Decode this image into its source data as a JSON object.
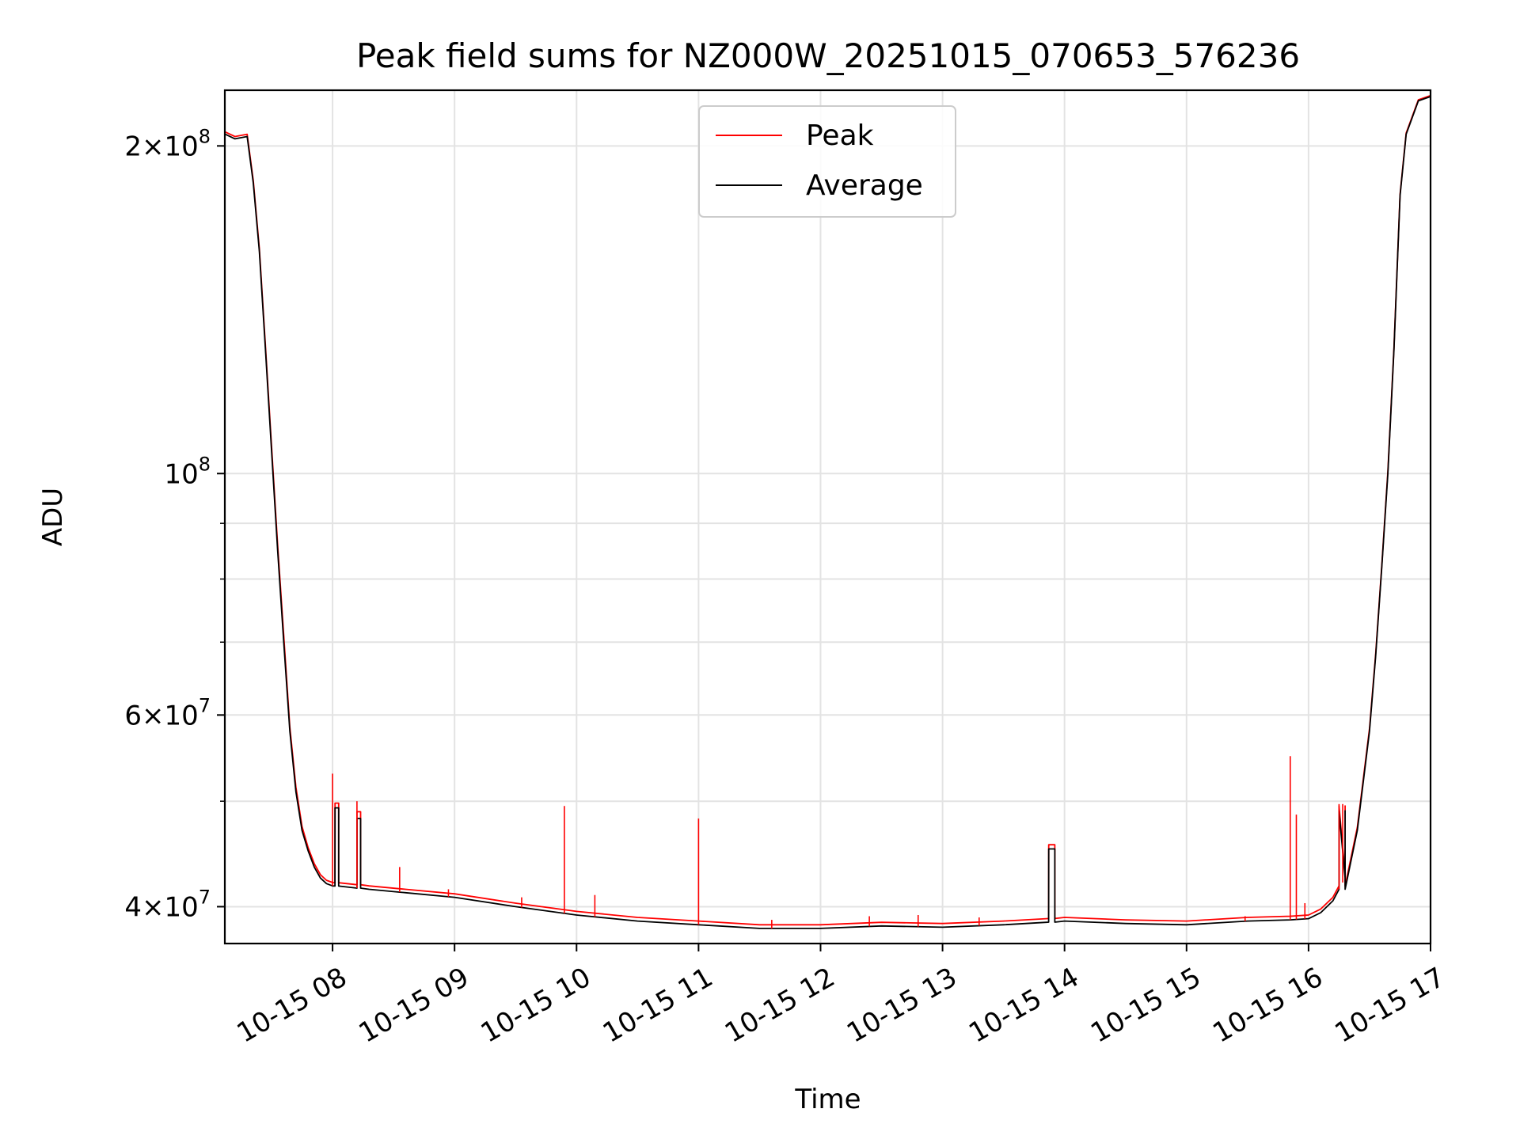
{
  "chart_data": {
    "type": "line",
    "title": "Peak field sums for NZ000W_20251015_070653_576236",
    "xlabel": "Time",
    "ylabel": "ADU",
    "yscale": "log",
    "xlim": [
      7.117,
      17.0
    ],
    "ylim": [
      37000000,
      225000000
    ],
    "grid": true,
    "legend_position": "upper-center",
    "x_ticks": [
      {
        "value": 8,
        "label": "10-15 08"
      },
      {
        "value": 9,
        "label": "10-15 09"
      },
      {
        "value": 10,
        "label": "10-15 10"
      },
      {
        "value": 11,
        "label": "10-15 11"
      },
      {
        "value": 12,
        "label": "10-15 12"
      },
      {
        "value": 13,
        "label": "10-15 13"
      },
      {
        "value": 14,
        "label": "10-15 14"
      },
      {
        "value": 15,
        "label": "10-15 15"
      },
      {
        "value": 16,
        "label": "10-15 16"
      },
      {
        "value": 17,
        "label": "10-15 17"
      }
    ],
    "y_ticks": [
      {
        "value": 40000000,
        "mant": "4",
        "exp": "7"
      },
      {
        "value": 60000000,
        "mant": "6",
        "exp": "7"
      },
      {
        "value": 100000000,
        "mant": "",
        "exp": "8"
      },
      {
        "value": 200000000,
        "mant": "2",
        "exp": "8"
      }
    ],
    "y_minor_ticks": [
      50000000,
      70000000,
      80000000,
      90000000
    ],
    "series": [
      {
        "name": "Average",
        "color": "#000000",
        "x": [
          7.12,
          7.2,
          7.3,
          7.35,
          7.4,
          7.45,
          7.5,
          7.55,
          7.6,
          7.65,
          7.7,
          7.75,
          7.8,
          7.85,
          7.9,
          7.95,
          8.0,
          8.3,
          8.6,
          9.0,
          9.5,
          10.0,
          10.5,
          11.0,
          11.5,
          12.0,
          12.5,
          13.0,
          13.5,
          13.85,
          14.0,
          14.5,
          15.0,
          15.5,
          15.85,
          16.0,
          16.1,
          16.2,
          16.3,
          16.4,
          16.5,
          16.55,
          16.6,
          16.65,
          16.7,
          16.75,
          16.8,
          16.9,
          17.0
        ],
        "y": [
          205000000,
          203000000,
          204000000,
          185000000,
          160000000,
          130000000,
          105000000,
          85000000,
          70000000,
          58000000,
          51000000,
          47000000,
          45000000,
          43500000,
          42500000,
          42000000,
          41800000,
          41500000,
          41200000,
          40800000,
          40000000,
          39300000,
          38800000,
          38500000,
          38200000,
          38200000,
          38400000,
          38300000,
          38500000,
          38700000,
          38800000,
          38600000,
          38500000,
          38800000,
          38900000,
          39000000,
          39500000,
          40500000,
          42500000,
          47000000,
          58000000,
          68000000,
          82000000,
          100000000,
          130000000,
          180000000,
          205000000,
          220000000,
          222000000
        ]
      },
      {
        "name": "Peak",
        "color": "#ff0000",
        "x": [
          7.12,
          7.2,
          7.3,
          7.35,
          7.4,
          7.45,
          7.5,
          7.55,
          7.6,
          7.65,
          7.7,
          7.75,
          7.8,
          7.85,
          7.9,
          7.95,
          8.0,
          8.3,
          8.6,
          9.0,
          9.5,
          10.0,
          10.5,
          11.0,
          11.5,
          12.0,
          12.5,
          13.0,
          13.5,
          13.85,
          14.0,
          14.5,
          15.0,
          15.5,
          15.85,
          16.0,
          16.1,
          16.2,
          16.3,
          16.4,
          16.5,
          16.55,
          16.6,
          16.65,
          16.7,
          16.75,
          16.8,
          16.9,
          17.0
        ],
        "y": [
          206000000,
          204000000,
          205000000,
          186000000,
          161000000,
          131000000,
          106000000,
          86000000,
          71000000,
          58500000,
          51500000,
          47400000,
          45300000,
          43800000,
          42800000,
          42300000,
          42100000,
          41800000,
          41500000,
          41100000,
          40300000,
          39600000,
          39100000,
          38800000,
          38500000,
          38500000,
          38700000,
          38600000,
          38800000,
          39000000,
          39100000,
          38900000,
          38800000,
          39100000,
          39200000,
          39300000,
          39800000,
          40800000,
          42800000,
          47300000,
          58300000,
          68300000,
          82300000,
          100500000,
          130500000,
          180500000,
          205500000,
          220500000,
          222500000
        ]
      }
    ],
    "spikes": [
      {
        "x": 8.0,
        "peak": 53000000,
        "average": 42000000
      },
      {
        "x": 8.2,
        "peak": 50000000,
        "average": 41700000
      },
      {
        "x": 8.55,
        "peak": 43500000,
        "average": 41400000
      },
      {
        "x": 8.95,
        "peak": 41500000,
        "average": 40800000
      },
      {
        "x": 9.55,
        "peak": 40800000,
        "average": 40000000
      },
      {
        "x": 9.9,
        "peak": 49500000,
        "average": 39500000
      },
      {
        "x": 10.15,
        "peak": 41000000,
        "average": 39300000
      },
      {
        "x": 11.0,
        "peak": 48200000,
        "average": 38600000
      },
      {
        "x": 11.6,
        "peak": 38900000,
        "average": 38200000
      },
      {
        "x": 12.4,
        "peak": 39200000,
        "average": 38300000
      },
      {
        "x": 12.8,
        "peak": 39300000,
        "average": 38300000
      },
      {
        "x": 13.3,
        "peak": 39100000,
        "average": 38400000
      },
      {
        "x": 15.48,
        "peak": 39200000,
        "average": 38800000
      },
      {
        "x": 15.85,
        "peak": 55000000,
        "average": 38900000
      },
      {
        "x": 15.9,
        "peak": 48600000,
        "average": 38900000
      },
      {
        "x": 15.97,
        "peak": 40300000,
        "average": 38900000
      },
      {
        "x": 16.25,
        "peak": 49700000,
        "average": 41500000
      },
      {
        "x": 16.28,
        "peak": 49700000,
        "average": 42000000
      }
    ],
    "plateaus": [
      {
        "x0": 8.02,
        "x1": 8.05,
        "peak": 49800000,
        "average": 49300000
      },
      {
        "x0": 8.2,
        "x1": 8.23,
        "peak": 48900000,
        "average": 48200000
      },
      {
        "x0": 13.87,
        "x1": 13.92,
        "peak": 45600000,
        "average": 45200000
      },
      {
        "x0": 16.25,
        "x1": 16.3,
        "peak": 49500000,
        "average": 49000000
      }
    ]
  }
}
